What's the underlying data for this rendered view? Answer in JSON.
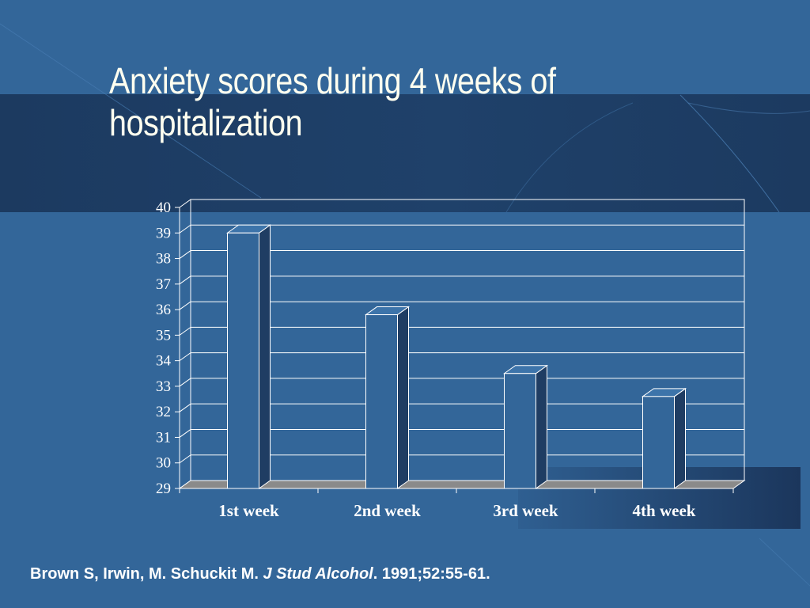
{
  "slide": {
    "title": "Anxiety scores during 4 weeks of hospitalization",
    "citation": {
      "authors": "Brown S, Irwin, M. Schuckit M. ",
      "journal": "J Stud Alcohol",
      "details": ". 1991;52:55-61."
    },
    "colors": {
      "background": "#336699",
      "bar_front": "#336699",
      "bar_side": "#1f3d63",
      "bar_top": "#3d74aa",
      "floor": "#8a8a8a",
      "text": "#ffffff",
      "title": "#fffff0"
    }
  },
  "chart_data": {
    "type": "bar",
    "title": "Anxiety scores during 4 weeks of hospitalization",
    "categories": [
      "1st week",
      "2nd week",
      "3rd week",
      "4th week"
    ],
    "values": [
      39,
      35.8,
      33.5,
      32.6
    ],
    "ylim": [
      29,
      40
    ],
    "yticks": [
      29,
      30,
      31,
      32,
      33,
      34,
      35,
      36,
      37,
      38,
      39,
      40
    ],
    "xlabel": "",
    "ylabel": "",
    "grid": true,
    "style": "3d"
  }
}
